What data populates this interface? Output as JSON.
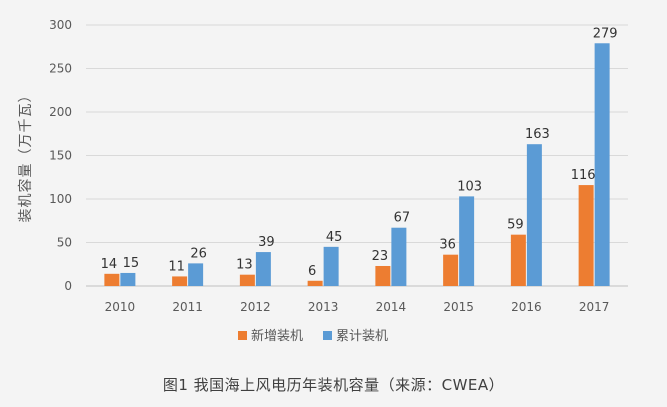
{
  "chart_data": {
    "type": "bar",
    "categories": [
      "2010",
      "2011",
      "2012",
      "2013",
      "2014",
      "2015",
      "2016",
      "2017"
    ],
    "series": [
      {
        "name": "新增装机",
        "values": [
          14,
          11,
          13,
          6,
          23,
          36,
          59,
          116
        ],
        "color": "#ed7d31"
      },
      {
        "name": "累计装机",
        "values": [
          15,
          26,
          39,
          45,
          67,
          103,
          163,
          279
        ],
        "color": "#5b9bd5"
      }
    ],
    "ylabel": "装机容量（万千瓦）",
    "ylim": [
      0,
      300
    ],
    "yticks": [
      0,
      50,
      100,
      150,
      200,
      250,
      300
    ],
    "grid": true,
    "legend": "bottom"
  },
  "caption": "图1 我国海上风电历年装机容量（来源：CWEA）"
}
